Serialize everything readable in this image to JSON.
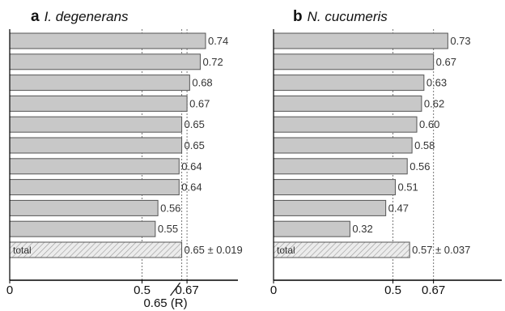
{
  "chart_data": [
    {
      "type": "bar",
      "orientation": "horizontal",
      "panel_letter": "a",
      "title": "I. degenerans",
      "values": [
        0.74,
        0.72,
        0.68,
        0.67,
        0.65,
        0.65,
        0.64,
        0.64,
        0.56,
        0.55
      ],
      "value_labels": [
        "0.74",
        "0.72",
        "0.68",
        "0.67",
        "0.65",
        "0.65",
        "0.64",
        "0.64",
        "0.56",
        "0.55"
      ],
      "total": {
        "label": "total",
        "value": 0.65,
        "text": "0.65 ± 0.019"
      },
      "x_ticks": [
        {
          "value": 0,
          "label": "0"
        },
        {
          "value": 0.5,
          "label": "0.5"
        },
        {
          "value": 0.67,
          "label": "0.67"
        }
      ],
      "reference_lines": [
        0.5,
        0.65,
        0.67
      ],
      "annotation": {
        "text": "0.65 (R)",
        "value": 0.65
      },
      "xlim": [
        0,
        1.0
      ],
      "grid": false
    },
    {
      "type": "bar",
      "orientation": "horizontal",
      "panel_letter": "b",
      "title": "N. cucumeris",
      "values": [
        0.73,
        0.67,
        0.63,
        0.62,
        0.6,
        0.58,
        0.56,
        0.51,
        0.47,
        0.32
      ],
      "value_labels": [
        "0.73",
        "0.67",
        "0.63",
        "0.62",
        "0.60",
        "0.58",
        "0.56",
        "0.51",
        "0.47",
        "0.32"
      ],
      "total": {
        "label": "total",
        "value": 0.57,
        "text": "0.57 ± 0.037"
      },
      "x_ticks": [
        {
          "value": 0,
          "label": "0"
        },
        {
          "value": 0.5,
          "label": "0.5"
        },
        {
          "value": 0.67,
          "label": "0.67"
        }
      ],
      "reference_lines": [
        0.5,
        0.67
      ],
      "xlim": [
        0,
        1.0
      ],
      "grid": false
    }
  ],
  "colors": {
    "bar": "#c8c8c8",
    "bar_stroke": "#555555",
    "total_fill": "#ececec",
    "axis": "#000000",
    "ref_line": "#777777"
  }
}
